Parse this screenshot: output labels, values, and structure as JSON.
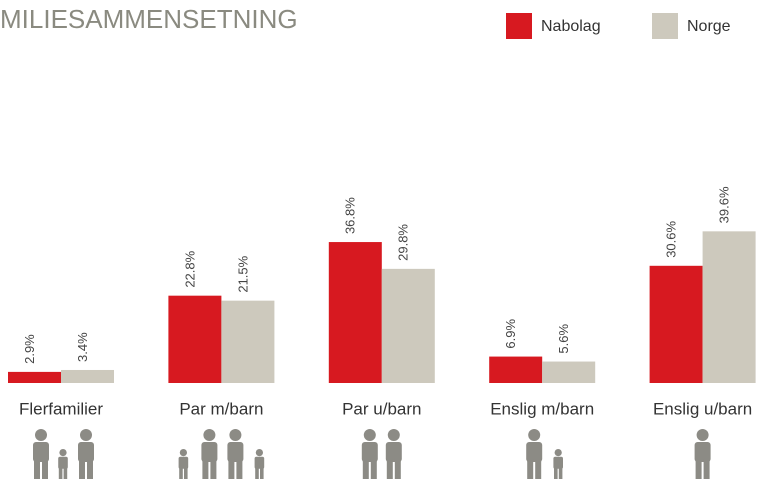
{
  "chart_data": {
    "type": "bar",
    "title": "MILIESAMMENSETNING",
    "categories": [
      "Flerfamilier",
      "Par m/barn",
      "Par u/barn",
      "Enslig m/barn",
      "Enslig u/barn"
    ],
    "series": [
      {
        "name": "Nabolag",
        "color": "#d71920",
        "values": [
          2.9,
          22.8,
          36.8,
          6.9,
          30.6
        ],
        "value_labels": [
          "2.9%",
          "22.8%",
          "36.8%",
          "6.9%",
          "30.6%"
        ]
      },
      {
        "name": "Norge",
        "color": "#cdc9bd",
        "values": [
          3.4,
          21.5,
          29.8,
          5.6,
          39.6
        ],
        "value_labels": [
          "3.4%",
          "21.5%",
          "29.8%",
          "5.6%",
          "39.6%"
        ]
      }
    ]
  }
}
